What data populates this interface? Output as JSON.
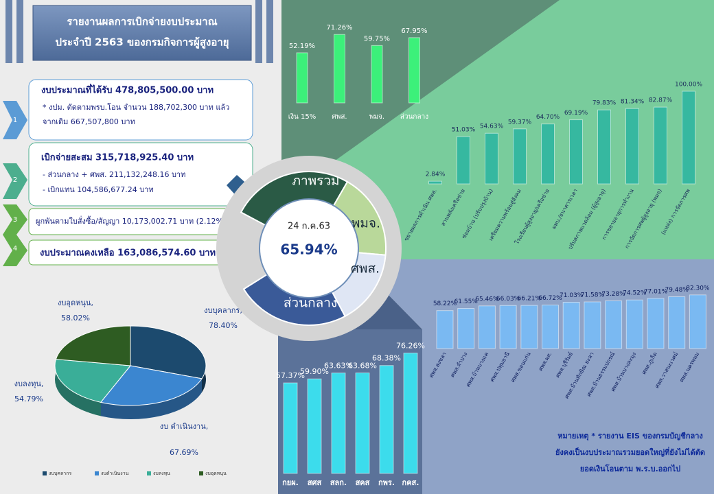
{
  "header": {
    "title": "รายงานผลการเบิกจ่ายงบประมาณ",
    "subtitle": "ประจำปี 2563 ของกรมกิจการผู้สูงอายุ"
  },
  "summary": [
    {
      "step": "1",
      "lines": [
        "งบประมาณที่ได้รับ  478,805,500.00  บาท",
        "* งปม. ตัดตามพรบ.โอน  จำนวน 188,702,300 บาท แล้ว",
        "จากเดิม 667,507,800 บาท"
      ]
    },
    {
      "step": "2",
      "lines": [
        "เบิกจ่ายสะสม      315,718,925.40   บาท",
        "- ส่วนกลาง + ศพส.      211,132,248.16  บาท",
        "- เบิกแทน               104,586,677.24 บาท"
      ]
    },
    {
      "step": "3",
      "lines": [
        "ผูกพันตามใบสั่งซื้อ/สัญญา    10,173,002.71  บาท (2.12%)"
      ]
    },
    {
      "step": "4",
      "lines": [
        "งบประมาณคงเหลือ  163,086,574.60  บาท"
      ]
    }
  ],
  "center": {
    "segments": [
      "ภาพรวม",
      "พมจ.",
      "ศพส.",
      "ส่วนกลาง"
    ],
    "date": "24 ก.ค.63",
    "overall": "65.94%"
  },
  "note": [
    "หมายเหตุ  * รายงาน EIS  ของกรมบัญชีกลาง",
    "ยังคงเป็นงบประมาณรวมยอดใหญ่ที่ยังไม่ได้ตัด",
    "ยอดเงินโอนตาม พ.ร.บ.ออกไป"
  ],
  "chart_data": [
    {
      "type": "bar",
      "color": "#3cf07a",
      "categories": [
        "เงิน 15%",
        "ศพส.",
        "พมจ.",
        "ส่วนกลาง"
      ],
      "values": [
        52.19,
        71.26,
        59.75,
        67.95
      ],
      "value_labels": [
        "52.19%",
        "71.26%",
        "59.75%",
        "67.95%"
      ]
    },
    {
      "type": "bar",
      "color": "#36b8a0",
      "categories": [
        "ขยายผลการดำเนิน ศพส.",
        "สานพลังเครือข่าย",
        "ซ่อมบ้าน (ปรับปรุงบ้าน)",
        "เตรียมความพร้อมสู่สังคม",
        "โรงเรียนผู้สูงอายุ/เครือข่าย",
        "ผพบ./ธนาคารเวลา",
        "ปรับสภาพแวดล้อม (ผู้สูงอายุ)",
        "การขยายอายุการทำงาน",
        "การจัดการศพผู้สูงอายุ (พมจ)",
        "(แหล่ง) การจัดการศพ"
      ],
      "values": [
        2.84,
        51.03,
        54.63,
        59.37,
        64.7,
        69.19,
        79.83,
        81.34,
        82.87,
        100.0
      ],
      "value_labels": [
        "2.84%",
        "51.03%",
        "54.63%",
        "59.37%",
        "64.70%",
        "69.19%",
        "79.83%",
        "81.34%",
        "82.87%",
        "100.00%"
      ]
    },
    {
      "type": "pie",
      "categories": [
        "งบบุคลากร",
        "งบดำเนินงาน",
        "งบลงทุน",
        "งบอุดหนุน"
      ],
      "slice_labels": [
        "งบบุคลากร,",
        "งบ ดำเนินงาน,",
        "งบลงทุน,",
        "งบอุดหนุน,"
      ],
      "values": [
        78.4,
        67.69,
        54.79,
        58.02
      ],
      "value_labels": [
        "78.40%",
        "67.69%",
        "54.79%",
        "58.02%"
      ],
      "colors": [
        "#1c4a6e",
        "#3b86d0",
        "#3aae98",
        "#2e5c22"
      ]
    },
    {
      "type": "bar",
      "color": "#7ab9f2",
      "categories": [
        "ศพส.สงขลา",
        "ศพส.ลำปาง",
        "ศพส.บ้านบางแค",
        "ศพส.ปทุมธานี",
        "ศพส.ขอนแก่น",
        "ศพส.ผส.",
        "ศพส.บุรีรัมย์",
        "ศพส.บ้านทักษิณ ยะลา",
        "ศพส.บ้านธรรมปกรณ์",
        "ศพส.บ้านบางละมุง",
        "ศพส.ภูเก็ต",
        "ศพส.วาสนะเวศม์",
        "ศพส.นครพนม"
      ],
      "values": [
        58.22,
        61.55,
        65.46,
        66.03,
        66.21,
        66.72,
        71.03,
        71.58,
        73.28,
        74.52,
        77.01,
        79.48,
        82.3
      ],
      "value_labels": [
        "58.22%",
        "61.55%",
        "65.46%",
        "66.03%",
        "66.21%",
        "66.72%",
        "71.03%",
        "71.58%",
        "73.28%",
        "74.52%",
        "77.01%",
        "79.48%",
        "82.30%"
      ]
    },
    {
      "type": "bar",
      "color": "#3cdcec",
      "categories": [
        "กยผ.",
        "สศส",
        "สลก.",
        "สคส",
        "กพร.",
        "กคส."
      ],
      "values": [
        57.37,
        59.9,
        63.63,
        63.68,
        68.38,
        76.26
      ],
      "value_labels": [
        "57.37%",
        "59.90%",
        "63.63%",
        "63.68%",
        "68.38%",
        "76.26%"
      ]
    }
  ]
}
